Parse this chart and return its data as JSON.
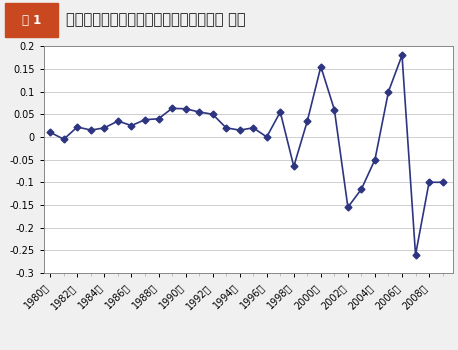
{
  "title_main": "ソフトウェア企業の出願特許数増加割合 割合",
  "title_box_label": "図 1",
  "years": [
    1980,
    1981,
    1982,
    1983,
    1984,
    1985,
    1986,
    1987,
    1988,
    1989,
    1990,
    1991,
    1992,
    1993,
    1994,
    1995,
    1996,
    1997,
    1998,
    1999,
    2000,
    2001,
    2002,
    2003,
    2004,
    2005,
    2006,
    2007,
    2008,
    2009
  ],
  "values": [
    0.01,
    -0.005,
    0.022,
    0.015,
    0.02,
    0.035,
    0.025,
    0.038,
    0.04,
    0.063,
    0.062,
    0.055,
    0.05,
    0.02,
    0.015,
    0.02,
    0.0,
    0.055,
    -0.065,
    0.035,
    0.155,
    0.06,
    -0.155,
    -0.115,
    -0.05,
    0.1,
    0.18,
    -0.26,
    -0.1,
    -0.1
  ],
  "x_tick_years": [
    1980,
    1982,
    1984,
    1986,
    1988,
    1990,
    1992,
    1994,
    1996,
    1998,
    2000,
    2002,
    2004,
    2006,
    2008
  ],
  "x_tick_labels": [
    "1980年",
    "1982年",
    "1984年",
    "1986年",
    "1988年",
    "1990年",
    "1992年",
    "1994年",
    "1996年",
    "1998年",
    "2000年",
    "2002年",
    "2004年",
    "2006年",
    "2008年"
  ],
  "ylim": [
    -0.3,
    0.2
  ],
  "yticks": [
    -0.3,
    -0.25,
    -0.2,
    -0.15,
    -0.1,
    -0.05,
    0.0,
    0.05,
    0.1,
    0.15,
    0.2
  ],
  "line_color": "#2e3580",
  "marker": "D",
  "marker_size": 3.5,
  "line_width": 1.2,
  "plot_bg_color": "#ffffff",
  "fig_bg_color": "#f0f0f0",
  "header_bg": "#ffffff",
  "accent_color": "#c94820",
  "box_bg_color": "#c94820",
  "box_text_color": "#ffffff",
  "title_font_size": 10.5,
  "tick_font_size": 7,
  "grid_color": "#c8c8c8",
  "spine_color": "#888888"
}
